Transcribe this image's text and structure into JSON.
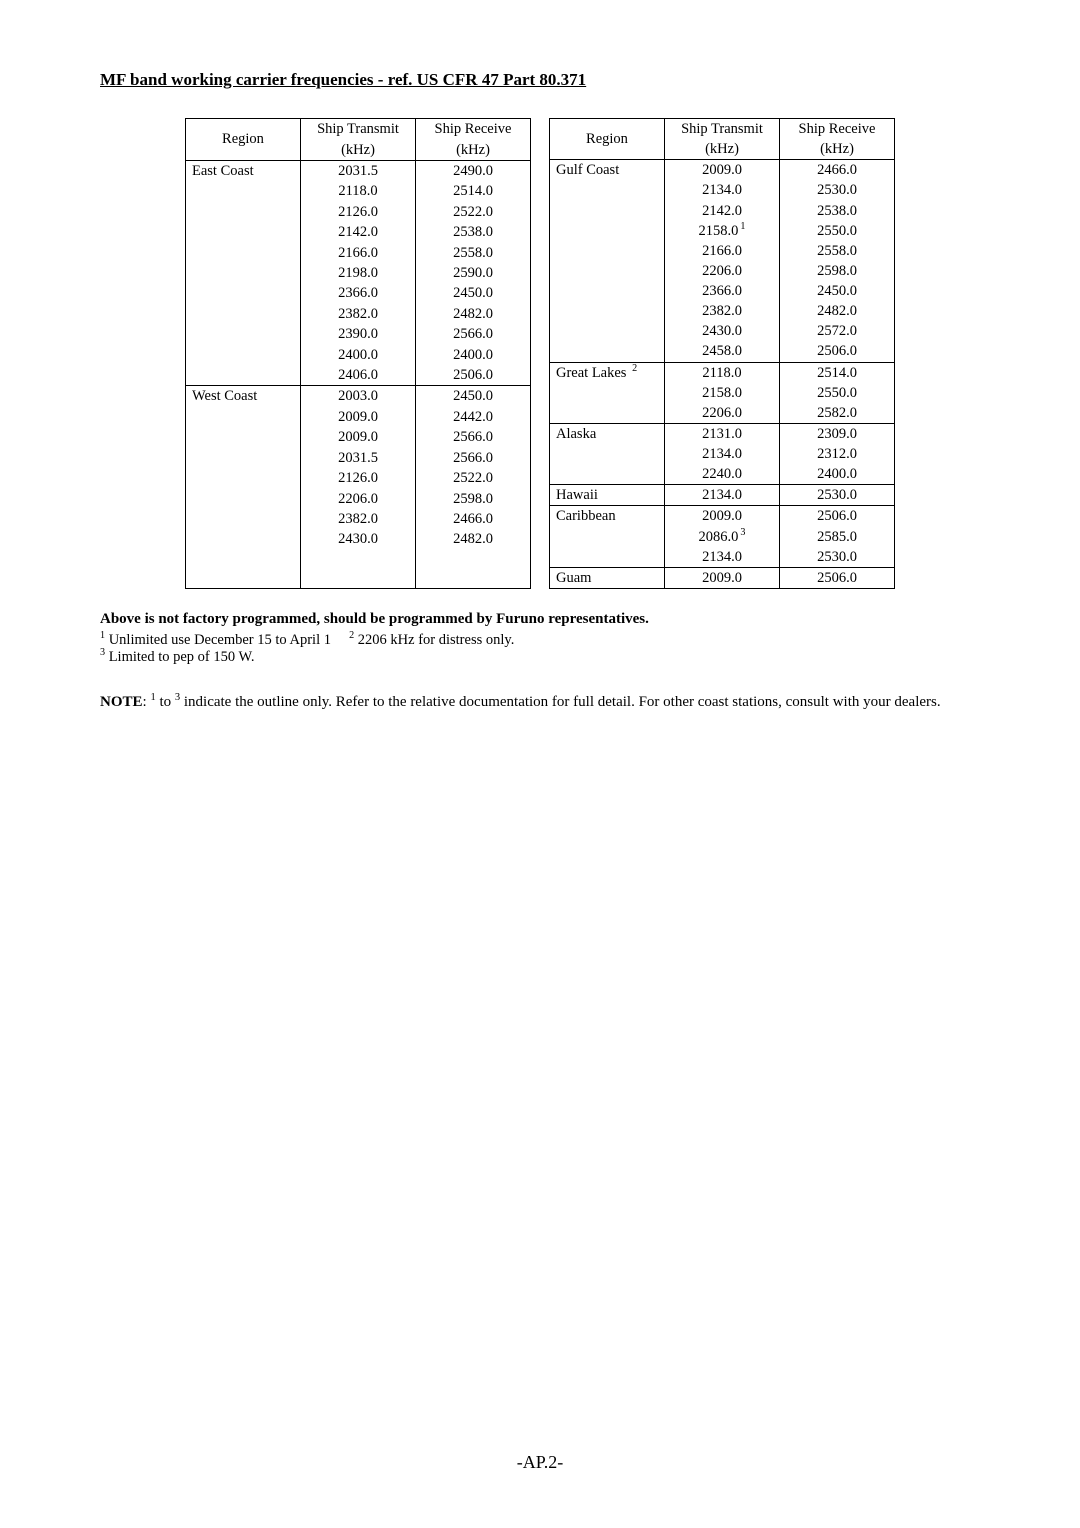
{
  "title": "MF band working carrier frequencies - ref. US CFR 47 Part 80.371",
  "headers": {
    "region": "Region",
    "tx": "Ship Transmit",
    "tx_unit": "(kHz)",
    "rx": "Ship Receive",
    "rx_unit": "(kHz)"
  },
  "left_table": [
    {
      "region": "East Coast",
      "tx": "2031.5",
      "rx": "2490.0",
      "section_start": true
    },
    {
      "region": "",
      "tx": "2118.0",
      "rx": "2514.0"
    },
    {
      "region": "",
      "tx": "2126.0",
      "rx": "2522.0"
    },
    {
      "region": "",
      "tx": "2142.0",
      "rx": "2538.0"
    },
    {
      "region": "",
      "tx": "2166.0",
      "rx": "2558.0"
    },
    {
      "region": "",
      "tx": "2198.0",
      "rx": "2590.0"
    },
    {
      "region": "",
      "tx": "2366.0",
      "rx": "2450.0"
    },
    {
      "region": "",
      "tx": "2382.0",
      "rx": "2482.0"
    },
    {
      "region": "",
      "tx": "2390.0",
      "rx": "2566.0"
    },
    {
      "region": "",
      "tx": "2400.0",
      "rx": "2400.0"
    },
    {
      "region": "",
      "tx": "2406.0",
      "rx": "2506.0"
    },
    {
      "region": "West Coast",
      "tx": "2003.0",
      "rx": "2450.0",
      "section_start": true
    },
    {
      "region": "",
      "tx": "2009.0",
      "rx": "2442.0"
    },
    {
      "region": "",
      "tx": "2009.0",
      "rx": "2566.0"
    },
    {
      "region": "",
      "tx": "2031.5",
      "rx": "2566.0"
    },
    {
      "region": "",
      "tx": "2126.0",
      "rx": "2522.0"
    },
    {
      "region": "",
      "tx": "2206.0",
      "rx": "2598.0"
    },
    {
      "region": "",
      "tx": "2382.0",
      "rx": "2466.0"
    },
    {
      "region": "",
      "tx": "2430.0",
      "rx": "2482.0"
    },
    {
      "region": "",
      "tx": "",
      "rx": ""
    },
    {
      "region": "",
      "tx": "",
      "rx": "",
      "section_end": true
    }
  ],
  "right_table": [
    {
      "region": "Gulf Coast",
      "tx": "2009.0",
      "rx": "2466.0",
      "section_start": true
    },
    {
      "region": "",
      "tx": "2134.0",
      "rx": "2530.0"
    },
    {
      "region": "",
      "tx": "2142.0",
      "rx": "2538.0"
    },
    {
      "region": "",
      "tx": "2158.0",
      "tx_sup": "1",
      "rx": "2550.0"
    },
    {
      "region": "",
      "tx": "2166.0",
      "rx": "2558.0"
    },
    {
      "region": "",
      "tx": "2206.0",
      "rx": "2598.0"
    },
    {
      "region": "",
      "tx": "2366.0",
      "rx": "2450.0"
    },
    {
      "region": "",
      "tx": "2382.0",
      "rx": "2482.0"
    },
    {
      "region": "",
      "tx": "2430.0",
      "rx": "2572.0"
    },
    {
      "region": "",
      "tx": "2458.0",
      "rx": "2506.0"
    },
    {
      "region": "Great Lakes",
      "region_sup": "2",
      "tx": "2118.0",
      "rx": "2514.0",
      "section_start": true
    },
    {
      "region": "",
      "tx": "2158.0",
      "rx": "2550.0"
    },
    {
      "region": "",
      "tx": "2206.0",
      "rx": "2582.0"
    },
    {
      "region": "Alaska",
      "tx": "2131.0",
      "rx": "2309.0",
      "section_start": true
    },
    {
      "region": "",
      "tx": "2134.0",
      "rx": "2312.0"
    },
    {
      "region": "",
      "tx": "2240.0",
      "rx": "2400.0"
    },
    {
      "region": "Hawaii",
      "tx": "2134.0",
      "rx": "2530.0",
      "section_start": true
    },
    {
      "region": "Caribbean",
      "tx": "2009.0",
      "rx": "2506.0",
      "section_start": true
    },
    {
      "region": "",
      "tx": "2086.0",
      "tx_sup": "3",
      "rx": "2585.0"
    },
    {
      "region": "",
      "tx": "2134.0",
      "rx": "2530.0"
    },
    {
      "region": "Guam",
      "tx": "2009.0",
      "rx": "2506.0",
      "section_start": true,
      "section_end": true
    }
  ],
  "below_note": "Above is not factory programmed, should be programmed by Furuno representatives.",
  "footnote1_sup": "1",
  "footnote1": " Unlimited use December 15 to April 1",
  "footnote2_sup": "2",
  "footnote2": " 2206 kHz for distress only.",
  "footnote3_sup": "3",
  "footnote3": " Limited to pep of 150 W.",
  "note_label": "NOTE",
  "note_colon": ": ",
  "note_sup1": "1",
  "note_mid": " to  ",
  "note_sup2": "3",
  "note_body": " indicate the outline only. Refer to the relative documentation for full detail. For other coast stations, consult with your dealers.",
  "page_number": "-AP.2-"
}
